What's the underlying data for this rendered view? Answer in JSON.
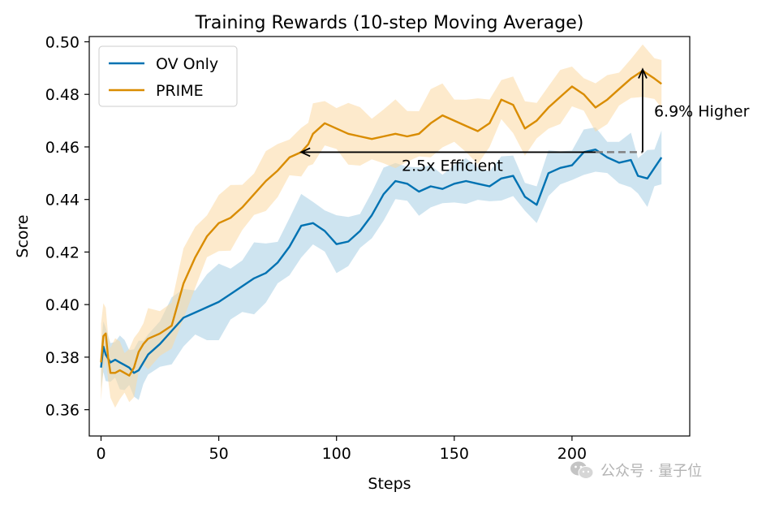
{
  "chart_data": {
    "type": "line",
    "title": "Training Rewards (10-step Moving Average)",
    "xlabel": "Steps",
    "ylabel": "Score",
    "xlim": [
      -5,
      250
    ],
    "ylim": [
      0.35,
      0.502
    ],
    "xticks": [
      0,
      50,
      100,
      150,
      200
    ],
    "yticks": [
      0.36,
      0.38,
      0.4,
      0.42,
      0.44,
      0.46,
      0.48,
      0.5
    ],
    "ytick_labels": [
      "0.36",
      "0.38",
      "0.40",
      "0.42",
      "0.44",
      "0.46",
      "0.48",
      "0.50"
    ],
    "legend": {
      "placement": "top-left",
      "entries": [
        "OV Only",
        "PRIME"
      ]
    },
    "grid": false,
    "series": [
      {
        "name": "OV Only",
        "color": "#0072b2",
        "band_color": "#a6cee3",
        "points": [
          [
            0,
            0.376
          ],
          [
            1,
            0.384
          ],
          [
            2,
            0.381
          ],
          [
            4,
            0.378
          ],
          [
            6,
            0.379
          ],
          [
            8,
            0.378
          ],
          [
            10,
            0.377
          ],
          [
            12,
            0.376
          ],
          [
            14,
            0.374
          ],
          [
            16,
            0.375
          ],
          [
            18,
            0.378
          ],
          [
            20,
            0.381
          ],
          [
            25,
            0.385
          ],
          [
            30,
            0.39
          ],
          [
            35,
            0.395
          ],
          [
            40,
            0.397
          ],
          [
            45,
            0.399
          ],
          [
            50,
            0.401
          ],
          [
            55,
            0.404
          ],
          [
            60,
            0.407
          ],
          [
            65,
            0.41
          ],
          [
            70,
            0.412
          ],
          [
            75,
            0.416
          ],
          [
            80,
            0.422
          ],
          [
            85,
            0.43
          ],
          [
            90,
            0.431
          ],
          [
            95,
            0.428
          ],
          [
            100,
            0.423
          ],
          [
            105,
            0.424
          ],
          [
            110,
            0.428
          ],
          [
            115,
            0.434
          ],
          [
            120,
            0.442
          ],
          [
            125,
            0.447
          ],
          [
            130,
            0.446
          ],
          [
            135,
            0.443
          ],
          [
            140,
            0.445
          ],
          [
            145,
            0.444
          ],
          [
            150,
            0.446
          ],
          [
            155,
            0.447
          ],
          [
            160,
            0.446
          ],
          [
            165,
            0.445
          ],
          [
            170,
            0.448
          ],
          [
            175,
            0.449
          ],
          [
            180,
            0.441
          ],
          [
            185,
            0.438
          ],
          [
            190,
            0.45
          ],
          [
            195,
            0.452
          ],
          [
            200,
            0.453
          ],
          [
            205,
            0.458
          ],
          [
            210,
            0.459
          ],
          [
            215,
            0.456
          ],
          [
            220,
            0.454
          ],
          [
            225,
            0.455
          ],
          [
            228,
            0.449
          ],
          [
            232,
            0.448
          ],
          [
            235,
            0.452
          ],
          [
            238,
            0.456
          ]
        ],
        "band_halfwidth": [
          [
            0,
            0.008
          ],
          [
            15,
            0.009
          ],
          [
            50,
            0.012
          ],
          [
            100,
            0.009
          ],
          [
            150,
            0.007
          ],
          [
            200,
            0.007
          ],
          [
            238,
            0.009
          ]
        ]
      },
      {
        "name": "PRIME",
        "color": "#d98c00",
        "band_color": "#fbd9a3",
        "points": [
          [
            0,
            0.378
          ],
          [
            1,
            0.388
          ],
          [
            2,
            0.389
          ],
          [
            3,
            0.38
          ],
          [
            4,
            0.374
          ],
          [
            6,
            0.374
          ],
          [
            8,
            0.375
          ],
          [
            10,
            0.374
          ],
          [
            12,
            0.373
          ],
          [
            14,
            0.376
          ],
          [
            16,
            0.382
          ],
          [
            18,
            0.385
          ],
          [
            20,
            0.387
          ],
          [
            25,
            0.389
          ],
          [
            30,
            0.392
          ],
          [
            35,
            0.408
          ],
          [
            40,
            0.418
          ],
          [
            45,
            0.426
          ],
          [
            50,
            0.431
          ],
          [
            55,
            0.433
          ],
          [
            60,
            0.437
          ],
          [
            65,
            0.442
          ],
          [
            70,
            0.447
          ],
          [
            75,
            0.451
          ],
          [
            80,
            0.456
          ],
          [
            85,
            0.458
          ],
          [
            88,
            0.461
          ],
          [
            90,
            0.465
          ],
          [
            95,
            0.469
          ],
          [
            100,
            0.467
          ],
          [
            105,
            0.465
          ],
          [
            110,
            0.464
          ],
          [
            115,
            0.463
          ],
          [
            120,
            0.464
          ],
          [
            125,
            0.465
          ],
          [
            130,
            0.464
          ],
          [
            135,
            0.465
          ],
          [
            140,
            0.469
          ],
          [
            145,
            0.472
          ],
          [
            150,
            0.47
          ],
          [
            155,
            0.468
          ],
          [
            160,
            0.466
          ],
          [
            165,
            0.469
          ],
          [
            170,
            0.478
          ],
          [
            175,
            0.476
          ],
          [
            180,
            0.467
          ],
          [
            185,
            0.47
          ],
          [
            190,
            0.475
          ],
          [
            195,
            0.479
          ],
          [
            200,
            0.483
          ],
          [
            205,
            0.48
          ],
          [
            210,
            0.475
          ],
          [
            215,
            0.478
          ],
          [
            220,
            0.482
          ],
          [
            225,
            0.486
          ],
          [
            230,
            0.489
          ],
          [
            235,
            0.486
          ],
          [
            238,
            0.484
          ]
        ],
        "band_halfwidth": [
          [
            0,
            0.012
          ],
          [
            15,
            0.009
          ],
          [
            35,
            0.011
          ],
          [
            80,
            0.009
          ],
          [
            140,
            0.011
          ],
          [
            200,
            0.008
          ],
          [
            238,
            0.008
          ]
        ]
      }
    ],
    "annotations": [
      {
        "text": "2.5x Efficient",
        "type": "arrow-left",
        "y": 0.458,
        "x_from": 212,
        "x_to": 85
      },
      {
        "text": "6.9% Higher",
        "type": "arrow-up",
        "x": 230,
        "y_from": 0.458,
        "y_to": 0.4895,
        "dashed_from_x": 210
      }
    ]
  },
  "watermark": {
    "text": "公众号 · 量子位",
    "icon": "wechat-icon"
  }
}
